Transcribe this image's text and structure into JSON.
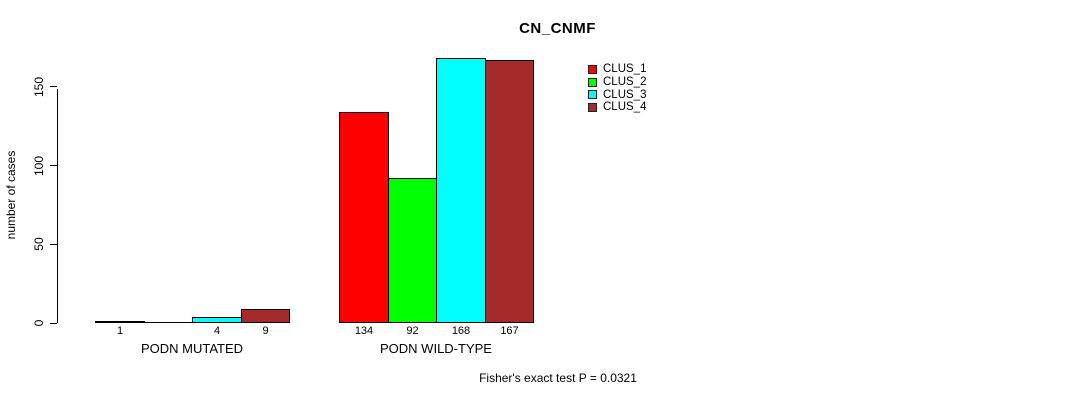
{
  "chart_data": {
    "type": "bar",
    "title": "CN_CNMF",
    "xlabel": "",
    "ylabel": "number of cases",
    "yticks": [
      0,
      50,
      100,
      150
    ],
    "ylim": [
      0,
      172
    ],
    "grid": false,
    "background": "#ffffff",
    "axis_color": "#000000",
    "legend": {
      "position": "top-right",
      "entries": [
        {
          "label": "CLUS_1",
          "color": "#ff0000"
        },
        {
          "label": "CLUS_2",
          "color": "#00ff00"
        },
        {
          "label": "CLUS_3",
          "color": "#00ffff"
        },
        {
          "label": "CLUS_4",
          "color": "#a52a2a"
        }
      ]
    },
    "series_colors": [
      "#ff0000",
      "#00ff00",
      "#00ffff",
      "#a52a2a"
    ],
    "series_names": [
      "CLUS_1",
      "CLUS_2",
      "CLUS_3",
      "CLUS_4"
    ],
    "groups": [
      {
        "label": "PODN MUTATED",
        "values": [
          1,
          0,
          4,
          9
        ],
        "bar_labels": [
          "1",
          "",
          "4",
          "9"
        ]
      },
      {
        "label": "PODN WILD-TYPE",
        "values": [
          134,
          92,
          168,
          167
        ],
        "bar_labels": [
          "134",
          "92",
          "168",
          "167"
        ]
      }
    ],
    "footnote": "Fisher's exact test P = 0.0321"
  }
}
